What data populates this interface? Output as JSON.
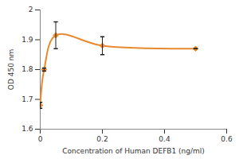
{
  "chart_data": {
    "type": "line",
    "x_label": "Concentration of Human DEFB1 (ng/ml)",
    "y_label": "OD 450 nm",
    "x": [
      0,
      0.0125,
      0.05,
      0.2,
      0.5
    ],
    "values": [
      1.68,
      1.8,
      1.915,
      1.88,
      1.87
    ],
    "errors": [
      0.01,
      0.005,
      0.045,
      0.03,
      0
    ],
    "color": "#e8892e",
    "marker": "diamond",
    "line_style": "smooth",
    "xlim": [
      0,
      0.6
    ],
    "ylim": [
      1.6,
      2
    ],
    "xticks": [
      0,
      0.2,
      0.4,
      0.6
    ],
    "yticks": [
      1.6,
      1.7,
      1.8,
      1.9,
      2
    ],
    "grid": false
  }
}
